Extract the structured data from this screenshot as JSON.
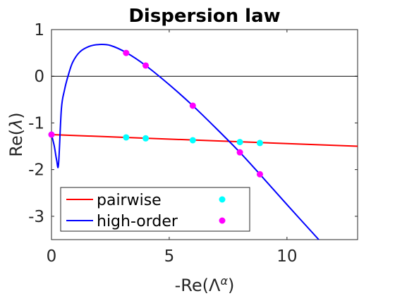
{
  "chart_data": {
    "type": "line",
    "title": "Dispersion law",
    "xlabel_prefix": "-Re(Λ",
    "xlabel_sup": "α",
    "xlabel_suffix": ")",
    "ylabel_prefix": "Re(",
    "ylabel_var": "λ",
    "ylabel_suffix": ")",
    "xlim": [
      0,
      13
    ],
    "ylim": [
      -3.5,
      1
    ],
    "xticks": [
      0,
      5,
      10
    ],
    "yticks": [
      1,
      0,
      -1,
      -2,
      -3
    ],
    "xtick_labels": [
      "0",
      "5",
      "10"
    ],
    "ytick_labels": [
      "1",
      "0",
      "-1",
      "-2",
      "-3"
    ],
    "zero_line": true,
    "grid": false,
    "legend_position": "bottom-left",
    "series": [
      {
        "name": "pairwise",
        "kind": "line",
        "color": "#ff0000",
        "x": [
          0,
          13
        ],
        "y": [
          -1.25,
          -1.5
        ]
      },
      {
        "name": "high-order",
        "kind": "line",
        "color": "#0000ff",
        "x": [
          0,
          0.12,
          0.22,
          0.3,
          0.42,
          0.55,
          0.7,
          0.9,
          1.2,
          1.6,
          2.0,
          2.5,
          3.2,
          4.0,
          5.0,
          6.0,
          7.0,
          8.0,
          8.85,
          10.0,
          11.35
        ],
        "y": [
          -1.25,
          -1.5,
          -1.8,
          -1.88,
          -0.7,
          -0.3,
          0.0,
          0.3,
          0.52,
          0.64,
          0.68,
          0.66,
          0.5,
          0.23,
          -0.18,
          -0.63,
          -1.12,
          -1.63,
          -2.1,
          -2.75,
          -3.5
        ]
      }
    ],
    "marker_series": [
      {
        "color": "#00ffff",
        "x": [
          0,
          3.17,
          4.0,
          6.0,
          8.0,
          8.85
        ],
        "y": [
          -1.25,
          -1.31,
          -1.33,
          -1.37,
          -1.41,
          -1.43
        ]
      },
      {
        "color": "#ff00ff",
        "x": [
          0,
          3.17,
          4.0,
          6.0,
          8.0,
          8.85
        ],
        "y": [
          -1.25,
          0.5,
          0.23,
          -0.63,
          -1.63,
          -2.1
        ]
      }
    ]
  }
}
